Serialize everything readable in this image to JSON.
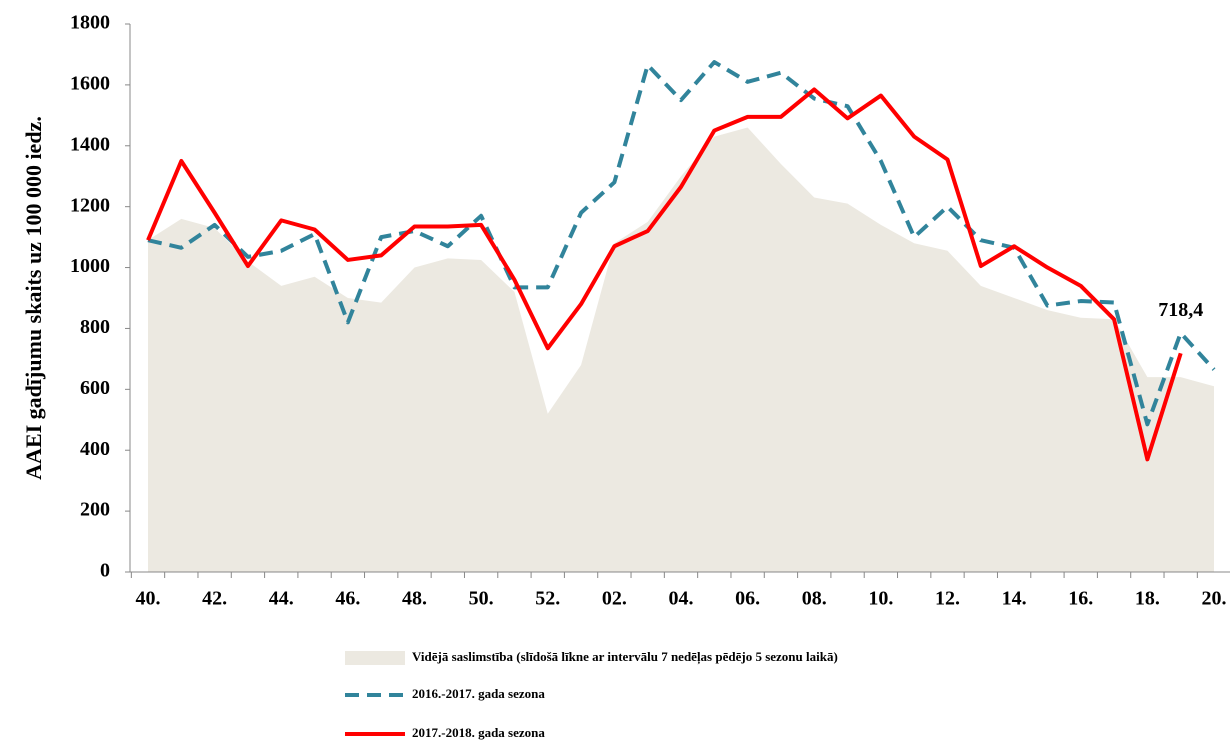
{
  "chart_data": {
    "type": "line",
    "y_label": "AAEI gadījumu skaits uz 100 000 iedz.",
    "categories": [
      "40.",
      null,
      "42.",
      null,
      "44.",
      null,
      "46.",
      null,
      "48.",
      null,
      "50.",
      null,
      "52.",
      null,
      "02.",
      null,
      "04.",
      null,
      "06.",
      null,
      "08.",
      null,
      "10.",
      null,
      "12.",
      null,
      "14.",
      null,
      "16.",
      null,
      "18.",
      null,
      "20."
    ],
    "ylim": [
      0,
      1800
    ],
    "yticks": [
      0,
      200,
      400,
      600,
      800,
      1000,
      1200,
      1400,
      1600,
      1800
    ],
    "series": [
      {
        "name": "Vidējā saslimstība (slīdošā līkne ar intervālu 7 nedēļas pēdējo 5 sezonu laikā)",
        "type": "area",
        "color": "#ece9e1",
        "values": [
          1090,
          1160,
          1130,
          1020,
          940,
          970,
          900,
          885,
          1000,
          1030,
          1025,
          920,
          520,
          680,
          1080,
          1150,
          1300,
          1430,
          1460,
          1340,
          1230,
          1210,
          1140,
          1080,
          1055,
          940,
          900,
          860,
          835,
          830,
          640,
          640,
          610
        ]
      },
      {
        "name": "2016.-2017.  gada sezona",
        "type": "line",
        "dashed": true,
        "color": "#31849b",
        "values": [
          1090,
          1065,
          1140,
          1035,
          1055,
          1110,
          820,
          1100,
          1120,
          1070,
          1170,
          935,
          935,
          1180,
          1280,
          1665,
          1550,
          1675,
          1610,
          1640,
          1555,
          1530,
          1350,
          1100,
          1200,
          1090,
          1065,
          875,
          890,
          885,
          485,
          785,
          665
        ]
      },
      {
        "name": "2017.-2018. gada sezona",
        "type": "line",
        "dashed": false,
        "color": "#ff0000",
        "values": [
          1090,
          1350,
          1180,
          1005,
          1155,
          1125,
          1025,
          1040,
          1135,
          1135,
          1140,
          960,
          735,
          880,
          1070,
          1120,
          1265,
          1450,
          1495,
          1495,
          1585,
          1490,
          1565,
          1430,
          1355,
          1005,
          1070,
          1000,
          940,
          830,
          370,
          718.4,
          null
        ],
        "value_labels": [
          null,
          null,
          null,
          null,
          null,
          null,
          null,
          null,
          null,
          null,
          null,
          null,
          null,
          null,
          null,
          null,
          null,
          null,
          null,
          null,
          null,
          null,
          null,
          null,
          null,
          null,
          null,
          null,
          null,
          null,
          null,
          "718,4",
          null
        ]
      }
    ]
  }
}
